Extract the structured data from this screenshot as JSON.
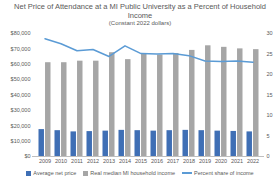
{
  "chart_data": {
    "type": "bar",
    "title": "Net Price of Attendance at a MI Public University as a Percent of Household Income",
    "subtitle": "(Constant 2022 dollars)",
    "categories": [
      "2009",
      "2010",
      "2011",
      "2012",
      "2013",
      "2014",
      "2015",
      "2016",
      "2017",
      "2018",
      "2019",
      "2020",
      "2021",
      "2022"
    ],
    "series": [
      {
        "name": "Average net price",
        "type": "bar",
        "color": "#3f6fb5",
        "values": [
          17500,
          16800,
          16000,
          16200,
          16500,
          17000,
          16800,
          16500,
          16800,
          17000,
          16800,
          16500,
          16300,
          16000
        ]
      },
      {
        "name": "Real median MI household income",
        "type": "bar",
        "color": "#a6a6a6",
        "values": [
          61000,
          61000,
          62000,
          62000,
          67500,
          63000,
          67000,
          66000,
          67000,
          69000,
          72000,
          71000,
          70000,
          69500
        ]
      },
      {
        "name": "Percent share of income",
        "type": "line",
        "axis": "y2",
        "color": "#5b9bd5",
        "values": [
          28.7,
          27.5,
          25.8,
          26.1,
          24.4,
          27.0,
          25.1,
          25.0,
          25.1,
          24.6,
          23.3,
          23.2,
          23.3,
          23.0
        ]
      }
    ],
    "ylim": [
      0,
      80000
    ],
    "yticks": [
      {
        "value": 0,
        "label": "$0"
      },
      {
        "value": 10000,
        "label": "$10,000"
      },
      {
        "value": 20000,
        "label": "$20,000"
      },
      {
        "value": 30000,
        "label": "$30,000"
      },
      {
        "value": 40000,
        "label": "$40,000"
      },
      {
        "value": 50000,
        "label": "$50,000"
      },
      {
        "value": 60000,
        "label": "$60,000"
      },
      {
        "value": 70000,
        "label": "$70,000"
      },
      {
        "value": 80000,
        "label": "$80,000"
      }
    ],
    "y2lim": [
      0,
      30
    ],
    "y2ticks": [
      0,
      5,
      10,
      15,
      20,
      25,
      30
    ],
    "grid": false,
    "legend": "bottom"
  }
}
